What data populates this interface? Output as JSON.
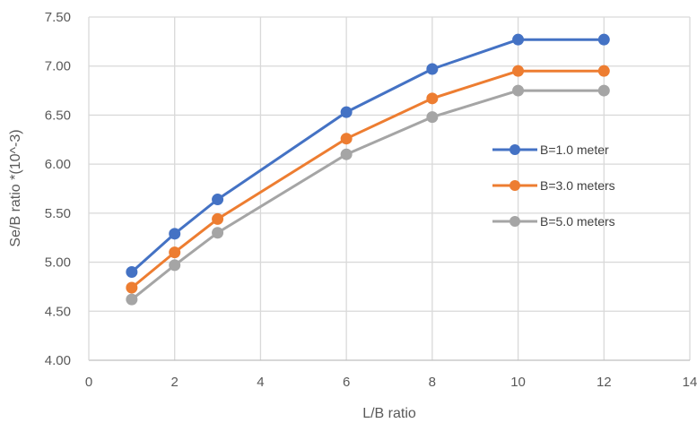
{
  "chart_data": {
    "type": "line",
    "title": "",
    "xlabel": "L/B ratio",
    "ylabel": "Se/B  ratio *(10^-3)",
    "xlim": [
      0,
      14
    ],
    "ylim": [
      4.0,
      7.5
    ],
    "x_ticks": [
      "0",
      "2",
      "4",
      "6",
      "8",
      "10",
      "12",
      "14"
    ],
    "y_ticks": [
      "4.00",
      "4.50",
      "5.00",
      "5.50",
      "6.00",
      "6.50",
      "7.00",
      "7.50"
    ],
    "grid": true,
    "legend_position": "right",
    "x": [
      1,
      2,
      3,
      6,
      8,
      10,
      12
    ],
    "series": [
      {
        "name": "B=1.0 meter",
        "color": "#4472C4",
        "values": [
          4.9,
          5.29,
          5.64,
          6.53,
          6.97,
          7.27,
          7.27
        ]
      },
      {
        "name": "B=3.0 meters",
        "color": "#ED7D31",
        "values": [
          4.74,
          5.1,
          5.44,
          6.26,
          6.67,
          6.95,
          6.95
        ]
      },
      {
        "name": "B=5.0 meters",
        "color": "#A5A5A5",
        "values": [
          4.62,
          4.97,
          5.3,
          6.1,
          6.48,
          6.75,
          6.75
        ]
      }
    ]
  }
}
